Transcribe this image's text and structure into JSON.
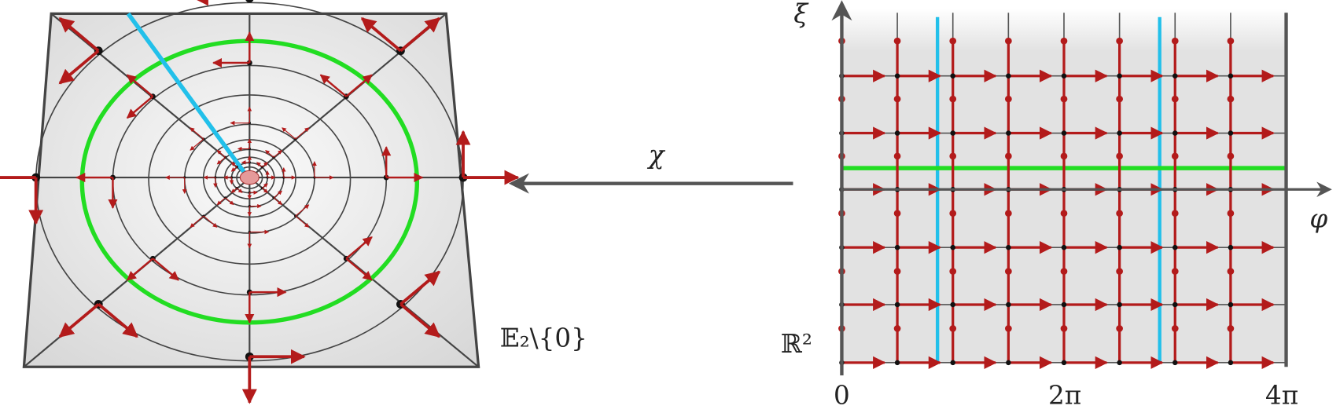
{
  "labels": {
    "xi": "ξ",
    "phi": "φ",
    "chi": "χ",
    "r2": "ℝ²",
    "e2": "𝔼₂\\{0}"
  },
  "ticks": [
    "0",
    "2π",
    "4π"
  ]
}
